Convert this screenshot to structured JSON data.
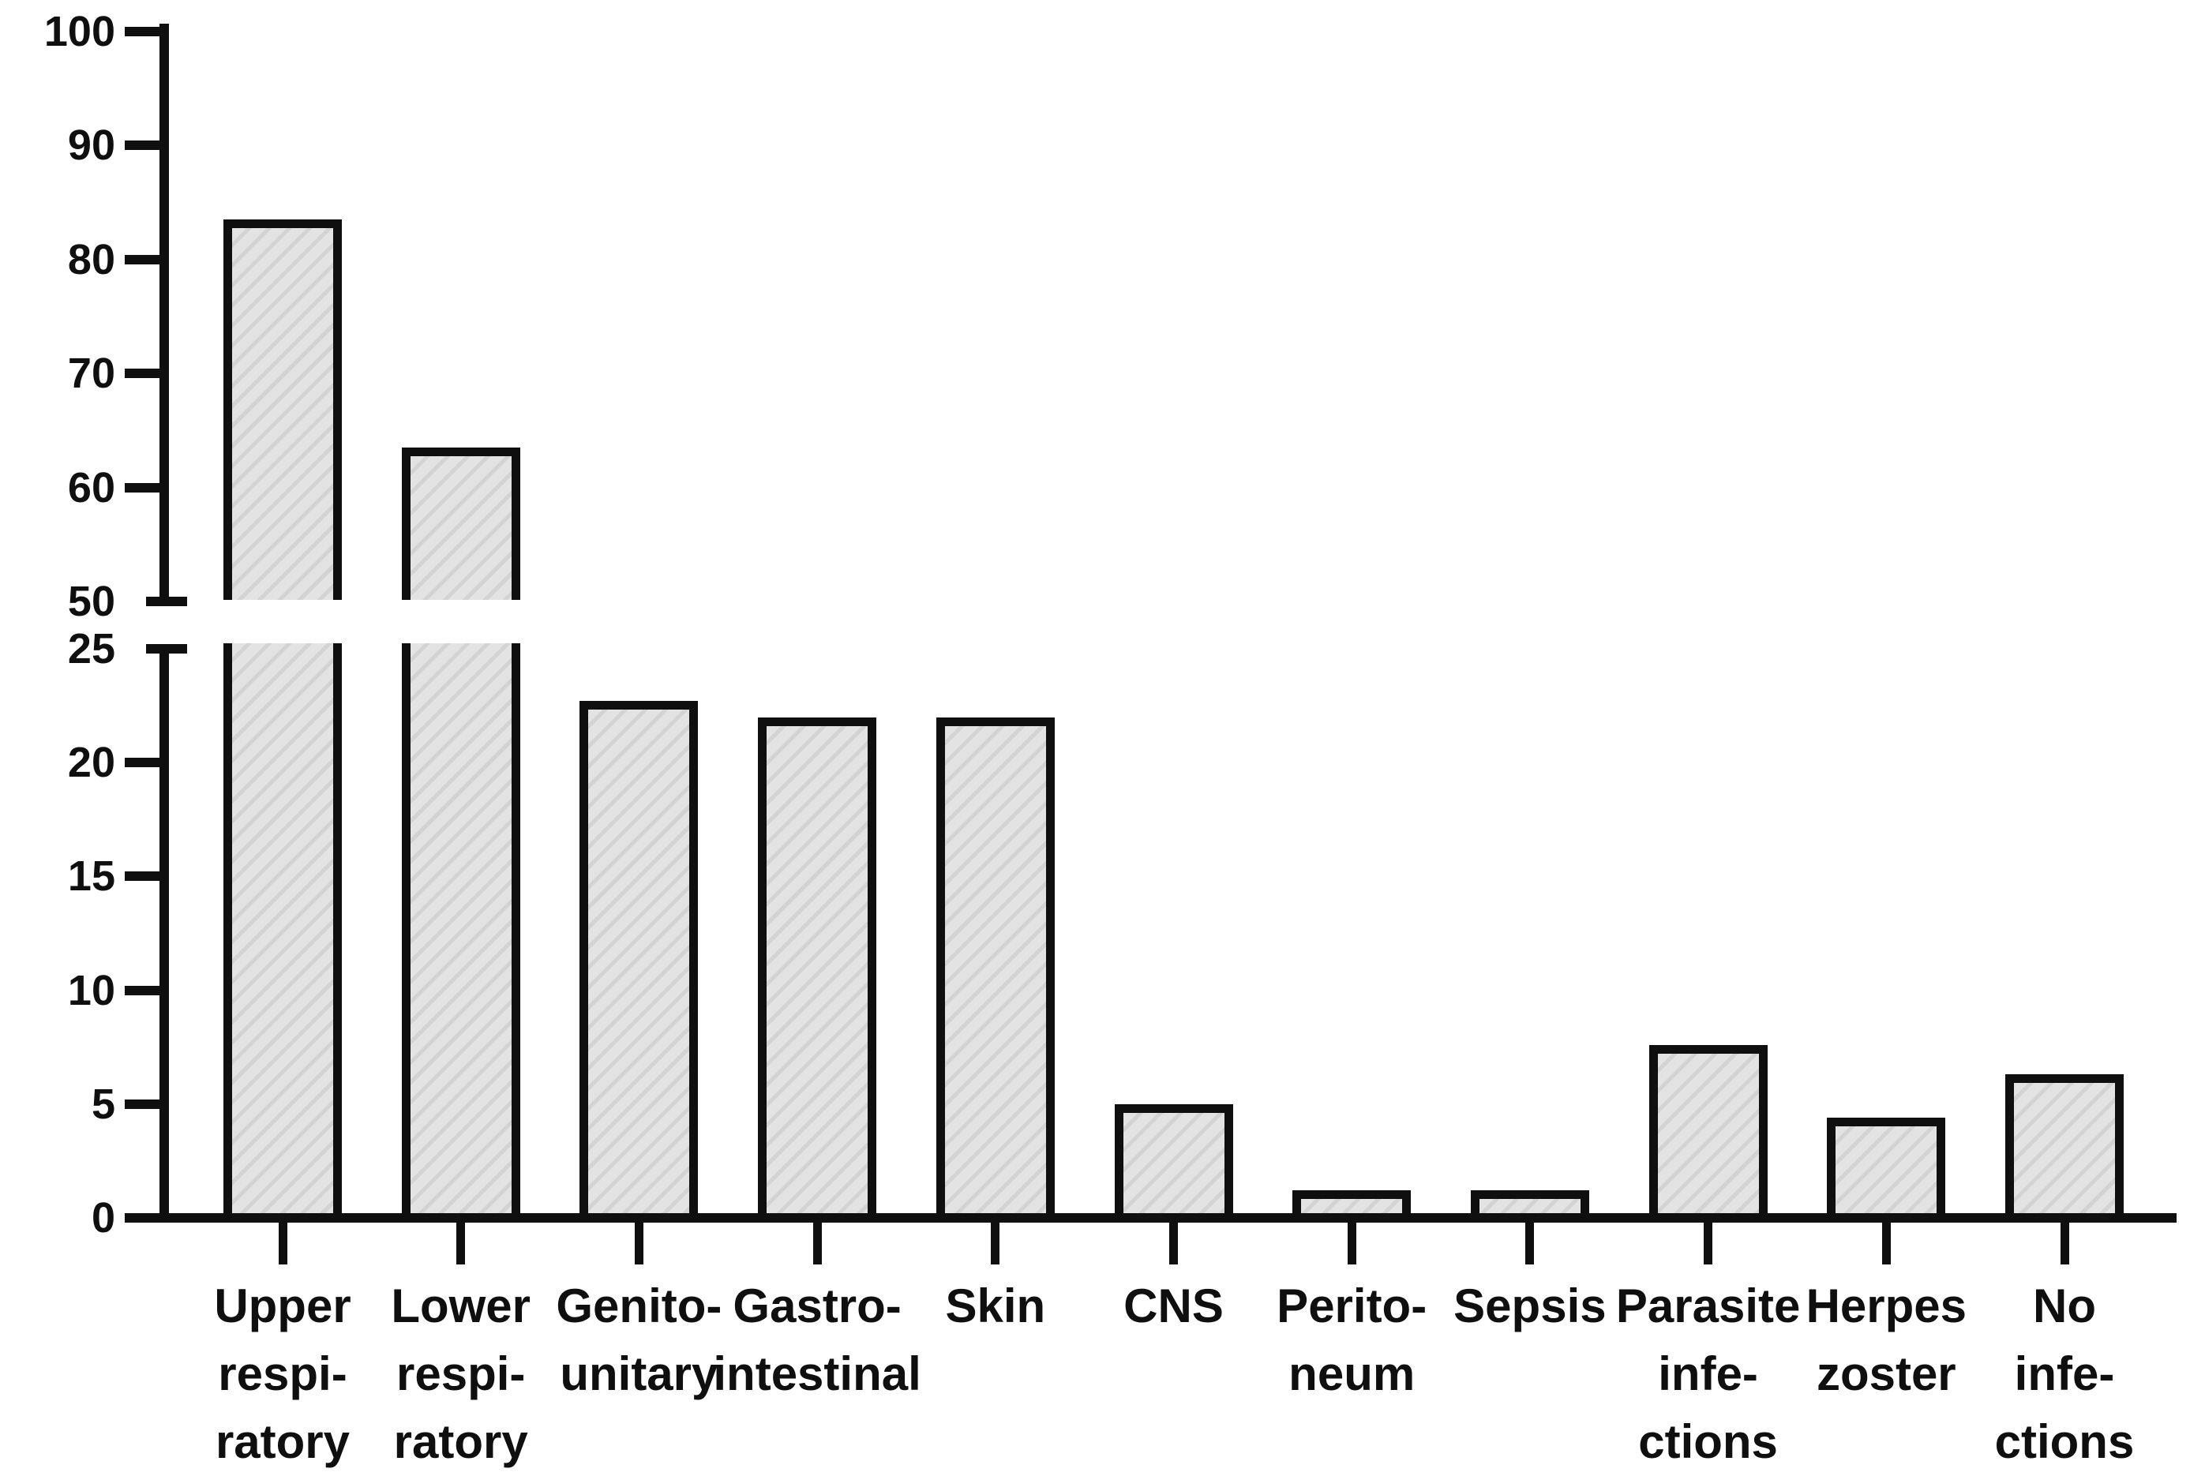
{
  "figure": {
    "background": "#ffffff",
    "title": ""
  },
  "chart_data": {
    "type": "bar",
    "title": "",
    "xlabel": "",
    "ylabel": "",
    "grid": false,
    "legend": null,
    "categories": [
      "Upper respiratory",
      "Lower respiratory",
      "Genito-unitary",
      "Gastro-intestinal",
      "Skin",
      "CNS",
      "Perito-neum",
      "Sepsis",
      "Parasite infections",
      "Herpes zoster",
      "No infections"
    ],
    "category_label_lines": [
      [
        "Upper",
        "respi-",
        "ratory"
      ],
      [
        "Lower",
        "respi-",
        "ratory"
      ],
      [
        "Genito-",
        "unitary"
      ],
      [
        "Gastro-",
        "intestinal"
      ],
      [
        "Skin"
      ],
      [
        "CNS"
      ],
      [
        "Perito-",
        "neum"
      ],
      [
        "Sepsis"
      ],
      [
        "Parasite",
        "infe-",
        "ctions"
      ],
      [
        "Herpes",
        "zoster"
      ],
      [
        "No",
        "infe-",
        "ctions"
      ]
    ],
    "values": [
      83.5,
      63.5,
      22.7,
      22,
      22,
      5,
      1.2,
      1.2,
      7.6,
      4.4,
      6.3
    ],
    "y_axis": {
      "broken": true,
      "break_between": [
        25,
        50
      ],
      "top_segment": {
        "min": 50,
        "max": 100,
        "ticks": [
          100,
          90,
          80,
          70,
          60,
          50
        ]
      },
      "bottom_segment": {
        "min": 0,
        "max": 25,
        "ticks": [
          25,
          20,
          15,
          10,
          5,
          0
        ]
      }
    },
    "bar_style": {
      "fill": "#e3e3e3",
      "hatch_stripe": "#d3d3d3",
      "hatch_direction": "diagonal-up-right",
      "outline": "#0f0f0f"
    }
  }
}
